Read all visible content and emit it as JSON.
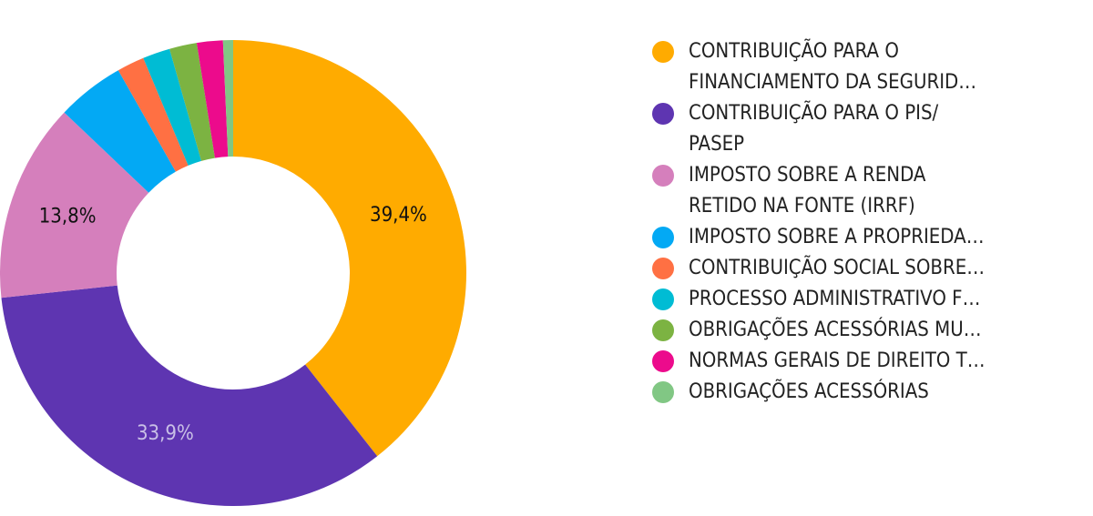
{
  "chart_data": {
    "type": "donut",
    "categories": [
      "CONTRIBUIÇÃO PARA O\nFINANCIAMENTO DA SEGURID…",
      "CONTRIBUIÇÃO PARA O PIS/\nPASEP",
      "IMPOSTO SOBRE A RENDA\nRETIDO NA FONTE (IRRF)",
      "IMPOSTO SOBRE A PROPRIEDA…",
      "CONTRIBUIÇÃO SOCIAL SOBRE…",
      "PROCESSO ADMINISTRATIVO F…",
      "OBRIGAÇÕES ACESSÓRIAS MU…",
      "NORMAS GERAIS DE DIREITO T…",
      "OBRIGAÇÕES ACESSÓRIAS"
    ],
    "values": [
      39.4,
      33.9,
      13.8,
      4.7,
      1.9,
      1.9,
      1.9,
      1.8,
      0.7
    ],
    "value_labels": [
      "39,4%",
      "33,9%",
      "13,8%",
      null,
      null,
      null,
      null,
      null,
      null
    ],
    "colors": [
      "#ffab00",
      "#5e35b1",
      "#d57fbc",
      "#03a9f4",
      "#ff7043",
      "#00bcd4",
      "#7cb342",
      "#ec0b8c",
      "#81c784"
    ],
    "legend": "right"
  }
}
